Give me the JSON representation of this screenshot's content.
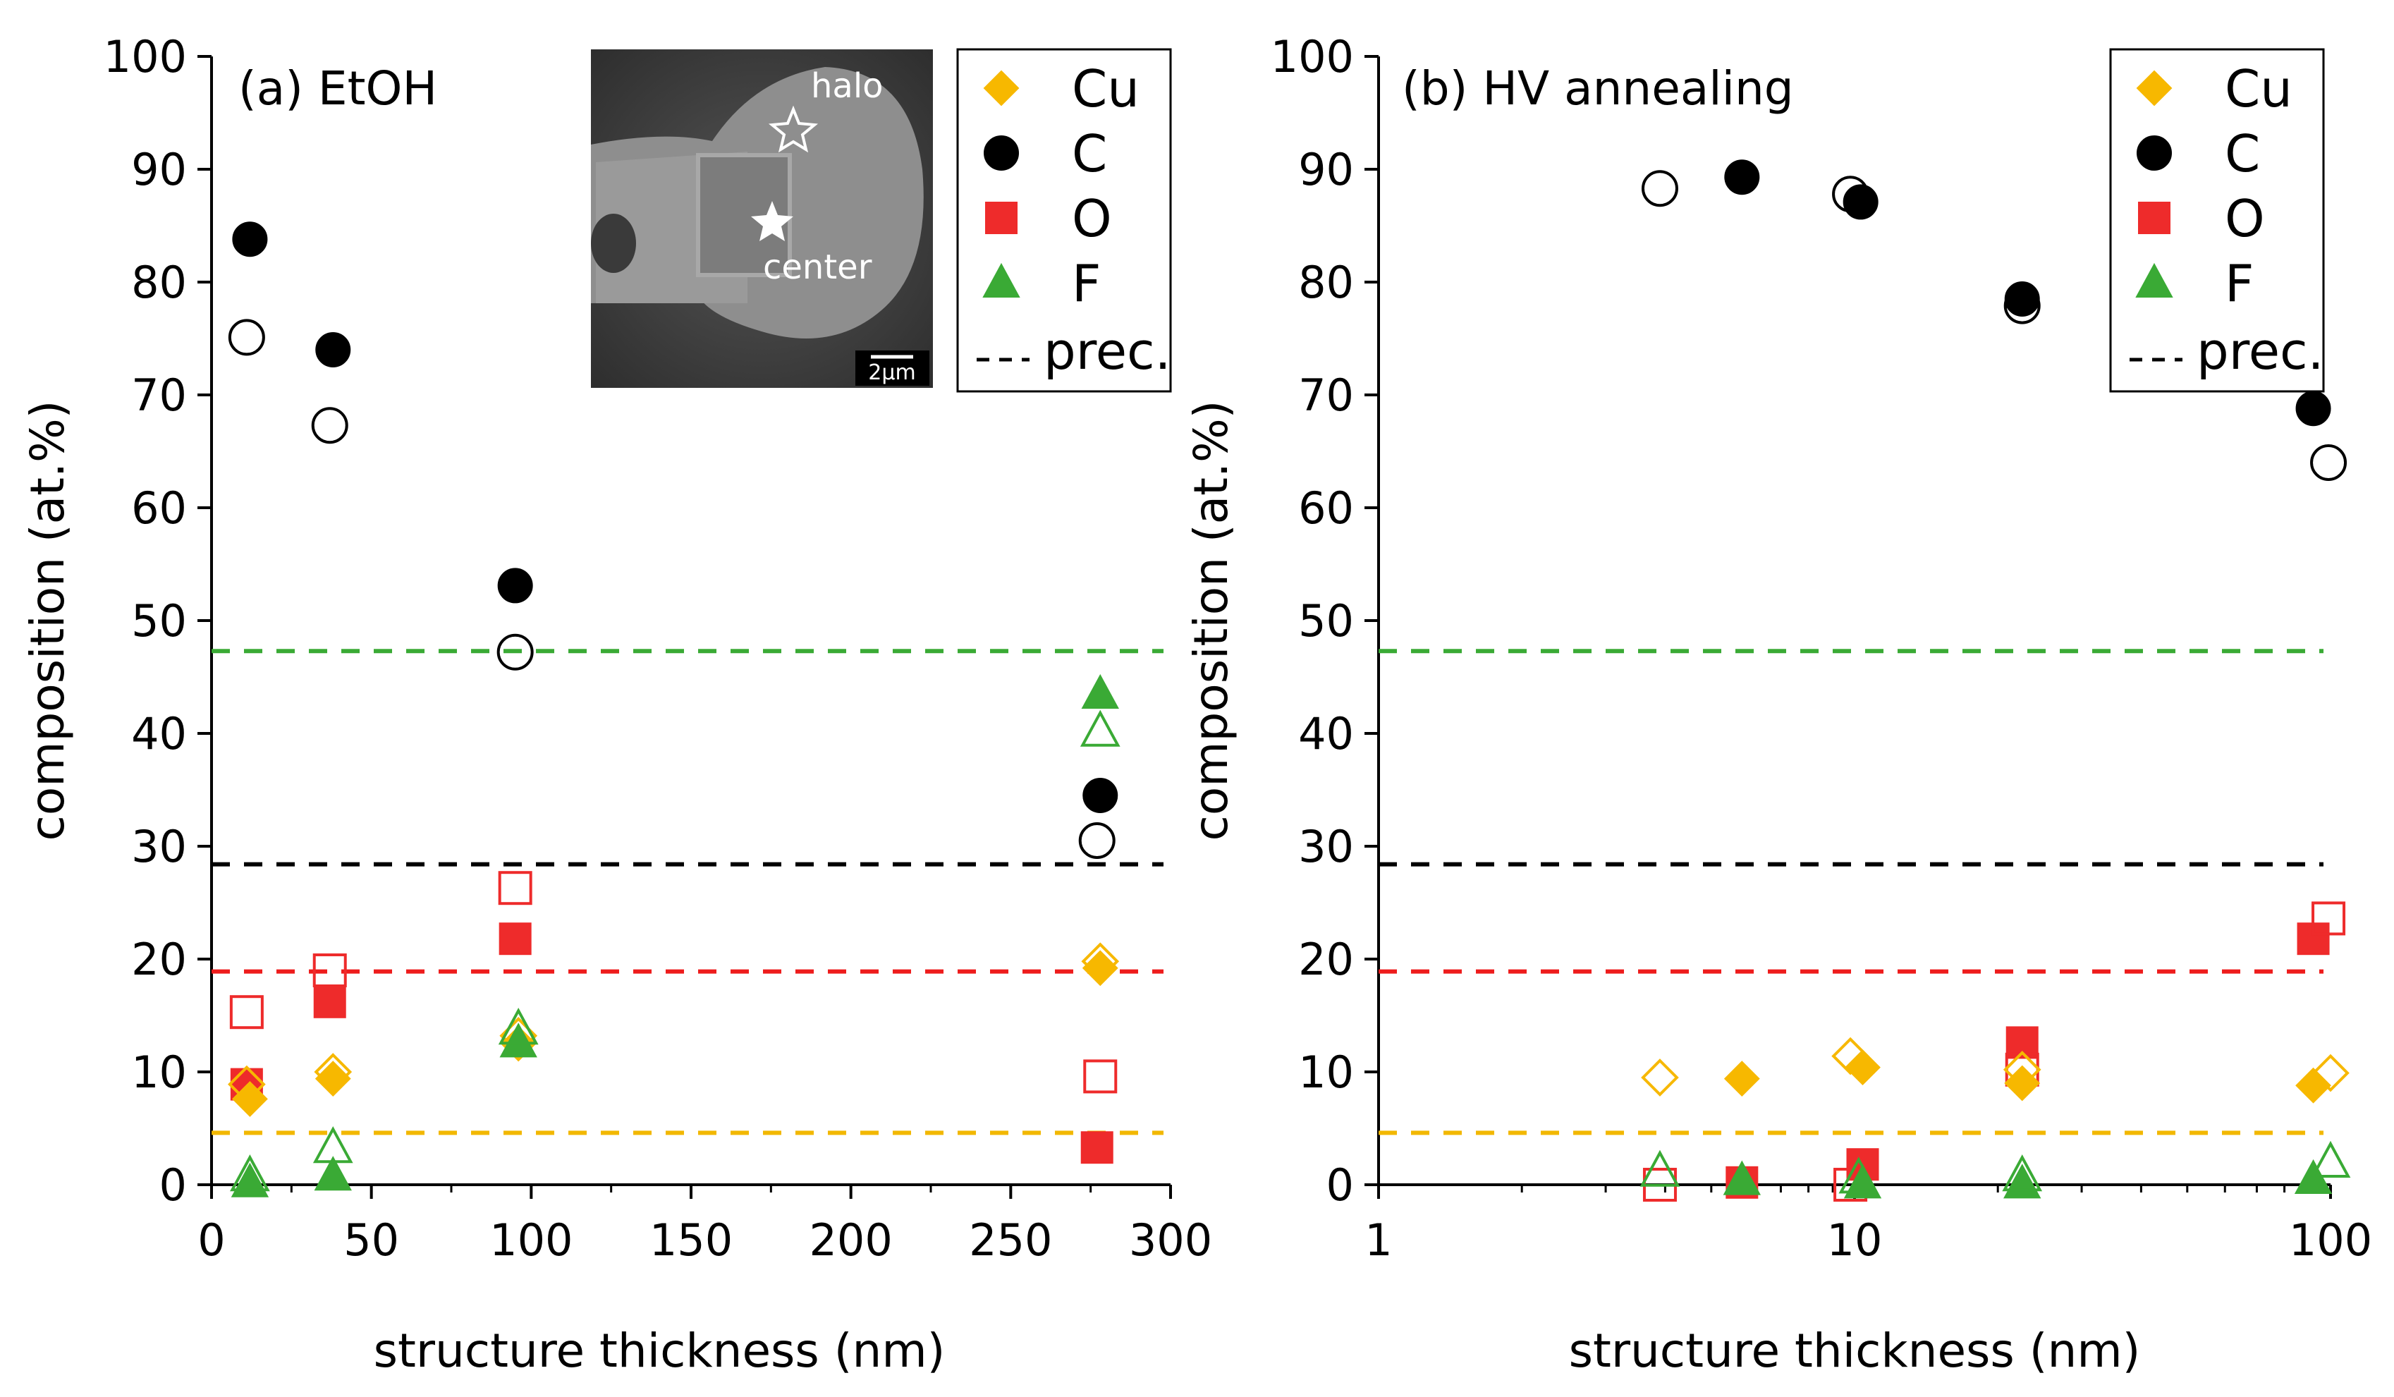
{
  "colors": {
    "Cu": "#f7b800",
    "C": "#000000",
    "O": "#ee2b2b",
    "F": "#3aaa35",
    "prec_Cu": "#f2b800",
    "prec_C": "#000000",
    "prec_O": "#ee1c1c",
    "prec_F": "#3aaa35"
  },
  "legend": {
    "entries": [
      {
        "key": "Cu",
        "label": "Cu",
        "marker": "diamond"
      },
      {
        "key": "C",
        "label": "C",
        "marker": "circle"
      },
      {
        "key": "O",
        "label": "O",
        "marker": "square"
      },
      {
        "key": "F",
        "label": "F",
        "marker": "triangle"
      }
    ],
    "prec_label": "prec."
  },
  "inset": {
    "labels": {
      "halo": "halo",
      "center": "center",
      "scale": "2µm"
    }
  },
  "chart_data": [
    {
      "type": "scatter",
      "title": "(a) EtOH",
      "xlabel": "structure thickness (nm)",
      "ylabel": "composition (at.%)",
      "xscale": "linear",
      "xlim": [
        0,
        300
      ],
      "ylim": [
        0,
        100
      ],
      "xticks": [
        0,
        50,
        100,
        150,
        200,
        250,
        300
      ],
      "yticks": [
        0,
        10,
        20,
        30,
        40,
        50,
        60,
        70,
        80,
        90,
        100
      ],
      "reference_lines": [
        {
          "element": "F",
          "y": 47.3,
          "xrange": [
            0,
            300
          ]
        },
        {
          "element": "C",
          "y": 28.4,
          "xrange": [
            0,
            300
          ]
        },
        {
          "element": "O",
          "y": 18.9,
          "xrange": [
            0,
            300
          ]
        },
        {
          "element": "Cu",
          "y": 4.6,
          "xrange": [
            0,
            300
          ]
        }
      ],
      "series": [
        {
          "element": "C",
          "fill": "filled",
          "x": [
            12,
            38,
            95,
            278
          ],
          "y": [
            83.8,
            74.0,
            53.1,
            34.5
          ]
        },
        {
          "element": "C",
          "fill": "open",
          "x": [
            11,
            37,
            95,
            277
          ],
          "y": [
            75.1,
            67.3,
            47.2,
            30.5
          ]
        },
        {
          "element": "O",
          "fill": "filled",
          "x": [
            11,
            37,
            95,
            277
          ],
          "y": [
            8.9,
            16.2,
            21.8,
            3.3
          ]
        },
        {
          "element": "O",
          "fill": "open",
          "x": [
            11,
            37,
            95,
            278
          ],
          "y": [
            15.3,
            19.0,
            26.3,
            9.6
          ]
        },
        {
          "element": "Cu",
          "fill": "filled",
          "x": [
            12,
            38,
            96,
            278
          ],
          "y": [
            7.6,
            9.4,
            12.5,
            19.2
          ]
        },
        {
          "element": "Cu",
          "fill": "open",
          "x": [
            11,
            38,
            96,
            278
          ],
          "y": [
            8.9,
            10.0,
            13.2,
            19.8
          ]
        },
        {
          "element": "F",
          "fill": "filled",
          "x": [
            12,
            38,
            96,
            278
          ],
          "y": [
            0.2,
            0.8,
            12.6,
            43.5
          ]
        },
        {
          "element": "F",
          "fill": "open",
          "x": [
            12,
            38,
            96,
            278
          ],
          "y": [
            0.8,
            3.3,
            13.8,
            40.2
          ]
        }
      ]
    },
    {
      "type": "scatter",
      "title": "(b) HV annealing",
      "xlabel": "structure thickness (nm)",
      "ylabel": "composition (at.%)",
      "xscale": "log",
      "xlim": [
        1,
        100
      ],
      "ylim": [
        0,
        100
      ],
      "xticks": [
        1,
        10,
        100
      ],
      "yticks": [
        0,
        10,
        20,
        30,
        40,
        50,
        60,
        70,
        80,
        90,
        100
      ],
      "reference_lines": [
        {
          "element": "F",
          "y": 47.3,
          "xrange": [
            1,
            100
          ]
        },
        {
          "element": "C",
          "y": 28.4,
          "xrange": [
            1,
            100
          ]
        },
        {
          "element": "O",
          "y": 18.9,
          "xrange": [
            1,
            100
          ]
        },
        {
          "element": "Cu",
          "y": 4.6,
          "xrange": [
            1,
            100
          ]
        }
      ],
      "series": [
        {
          "element": "C",
          "fill": "filled",
          "x": [
            5.8,
            10.3,
            22.5,
            92
          ],
          "y": [
            89.3,
            87.1,
            78.5,
            68.8
          ]
        },
        {
          "element": "C",
          "fill": "open",
          "x": [
            3.9,
            9.8,
            22.5,
            99
          ],
          "y": [
            88.3,
            87.8,
            77.9,
            64.0
          ]
        },
        {
          "element": "O",
          "fill": "filled",
          "x": [
            5.8,
            10.4,
            22.5,
            92
          ],
          "y": [
            0.2,
            1.8,
            12.6,
            21.8
          ]
        },
        {
          "element": "O",
          "fill": "open",
          "x": [
            3.9,
            9.8,
            22.5,
            99
          ],
          "y": [
            0.0,
            0.0,
            10.2,
            23.6
          ]
        },
        {
          "element": "Cu",
          "fill": "filled",
          "x": [
            5.8,
            10.4,
            22.5,
            92
          ],
          "y": [
            9.4,
            10.4,
            9.0,
            8.8
          ]
        },
        {
          "element": "Cu",
          "fill": "open",
          "x": [
            3.9,
            9.8,
            22.5,
            100
          ],
          "y": [
            9.5,
            11.4,
            10.2,
            9.9
          ]
        },
        {
          "element": "F",
          "fill": "filled",
          "x": [
            5.8,
            10.4,
            22.5,
            92
          ],
          "y": [
            0.4,
            0.1,
            0.1,
            0.5
          ]
        },
        {
          "element": "F",
          "fill": "open",
          "x": [
            3.9,
            10.2,
            22.5,
            100
          ],
          "y": [
            1.2,
            0.6,
            0.8,
            2.0
          ]
        }
      ]
    }
  ]
}
